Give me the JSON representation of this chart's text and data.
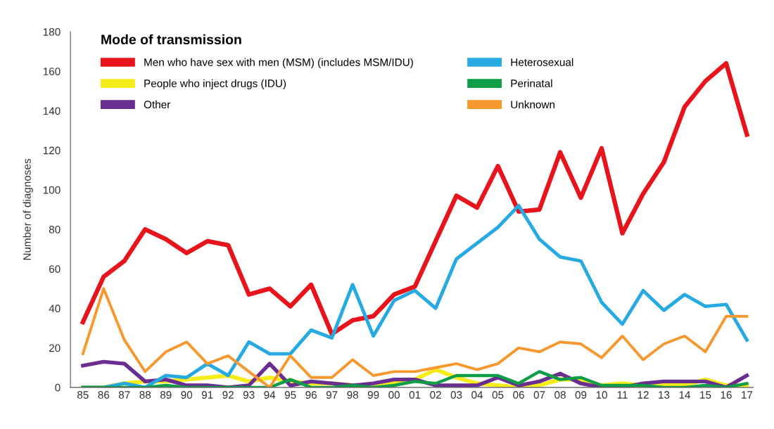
{
  "chart_data": {
    "type": "line",
    "ylabel": "Number of diagnoses",
    "legend_title": "Mode of transmission",
    "legend": "top left",
    "grid": false,
    "marker": "none",
    "line_style": "solid",
    "categories": [
      "85",
      "86",
      "87",
      "88",
      "89",
      "90",
      "91",
      "92",
      "93",
      "94",
      "95",
      "96",
      "97",
      "98",
      "99",
      "00",
      "01",
      "02",
      "03",
      "04",
      "05",
      "06",
      "07",
      "08",
      "09",
      "10",
      "11",
      "12",
      "13",
      "14",
      "15",
      "16",
      "17"
    ],
    "ylim": [
      0,
      180
    ],
    "yticks": [
      0,
      20,
      40,
      60,
      80,
      100,
      120,
      140,
      160,
      180
    ],
    "series": [
      {
        "name": "Men who have sex with men (MSM) (includes MSM/IDU)",
        "color": "#e8141c",
        "values": [
          33,
          56,
          64,
          80,
          75,
          68,
          74,
          72,
          47,
          50,
          41,
          52,
          27,
          34,
          36,
          47,
          51,
          74,
          97,
          91,
          112,
          89,
          90,
          119,
          96,
          121,
          78,
          98,
          114,
          142,
          155,
          164,
          128
        ]
      },
      {
        "name": "People who inject drugs (IDU)",
        "color": "#f5ec1a",
        "values": [
          0,
          0,
          2,
          3,
          3,
          4,
          5,
          6,
          3,
          5,
          3,
          2,
          2,
          1,
          1,
          2,
          4,
          9,
          5,
          2,
          1,
          0,
          1,
          4,
          4,
          1,
          2,
          1,
          1,
          1,
          4,
          1,
          1
        ]
      },
      {
        "name": "Other",
        "color": "#6a2d91",
        "values": [
          11,
          13,
          12,
          3,
          4,
          1,
          1,
          0,
          1,
          12,
          1,
          3,
          2,
          1,
          2,
          4,
          4,
          1,
          1,
          1,
          5,
          1,
          3,
          7,
          2,
          0,
          0,
          2,
          3,
          3,
          3,
          0,
          6
        ]
      },
      {
        "name": "Heterosexual",
        "color": "#27a9e1",
        "values": [
          0,
          0,
          2,
          0,
          6,
          5,
          12,
          6,
          23,
          17,
          17,
          29,
          25,
          52,
          26,
          44,
          49,
          40,
          65,
          73,
          81,
          92,
          75,
          66,
          64,
          43,
          32,
          49,
          39,
          47,
          41,
          42,
          24
        ]
      },
      {
        "name": "Perinatal",
        "color": "#0f9d48",
        "values": [
          0,
          0,
          0,
          0,
          1,
          0,
          0,
          0,
          0,
          0,
          4,
          0,
          0,
          1,
          0,
          1,
          3,
          2,
          6,
          6,
          6,
          2,
          8,
          4,
          5,
          1,
          1,
          1,
          0,
          0,
          1,
          0,
          2
        ]
      },
      {
        "name": "Unknown",
        "color": "#f7982f",
        "values": [
          17,
          50,
          24,
          8,
          18,
          23,
          12,
          16,
          8,
          0,
          16,
          5,
          5,
          14,
          6,
          8,
          8,
          10,
          12,
          9,
          12,
          20,
          18,
          23,
          22,
          15,
          26,
          14,
          22,
          26,
          18,
          36,
          36
        ]
      }
    ]
  }
}
